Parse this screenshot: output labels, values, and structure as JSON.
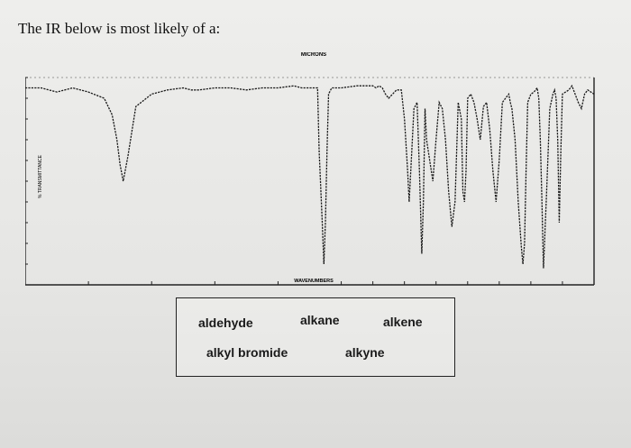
{
  "question": "The IR below is most likely of a:",
  "choices": [
    "aldehyde",
    "alkane",
    "alkene",
    "alkyl bromide",
    "alkyne"
  ],
  "chart_data": {
    "type": "line",
    "title": "",
    "xlabel": "WAVENUMBERS",
    "top_axis_label": "MICRONS",
    "ylabel": "% TRANSMITTANCE",
    "xlim": [
      4000,
      400
    ],
    "ylim": [
      0,
      100
    ],
    "x_ticks": [
      4000,
      3600,
      3200,
      2800,
      2400,
      2000,
      1800,
      1600,
      1400,
      1200,
      1000,
      800,
      600,
      400
    ],
    "y_ticks": [
      10,
      20,
      30,
      40,
      50,
      60,
      70,
      80,
      90,
      100
    ],
    "series": [
      {
        "x": [
          4000,
          3900,
          3800,
          3700,
          3600,
          3500,
          3450,
          3420,
          3400,
          3380,
          3350,
          3300,
          3200,
          3100,
          3000,
          2950,
          2900,
          2800,
          2700,
          2600,
          2500,
          2400,
          2300,
          2250,
          2150,
          2140,
          2120,
          2110,
          2100,
          2090,
          2080,
          2060,
          2000,
          1900,
          1800,
          1780,
          1760,
          1740,
          1720,
          1700,
          1650,
          1620,
          1600,
          1580,
          1570,
          1560,
          1540,
          1520,
          1505,
          1490,
          1480,
          1470,
          1460,
          1440,
          1420,
          1400,
          1380,
          1360,
          1340,
          1320,
          1300,
          1280,
          1260,
          1240,
          1230,
          1220,
          1210,
          1200,
          1180,
          1160,
          1140,
          1120,
          1100,
          1080,
          1060,
          1040,
          1020,
          1000,
          980,
          960,
          940,
          930,
          920,
          900,
          880,
          860,
          850,
          840,
          830,
          820,
          800,
          780,
          760,
          750,
          740,
          730,
          720,
          700,
          680,
          660,
          650,
          640,
          630,
          620,
          610,
          600,
          580,
          560,
          540,
          520,
          500,
          480,
          460,
          440,
          420,
          400
        ],
        "y": [
          95,
          95,
          93,
          95,
          93,
          90,
          82,
          70,
          58,
          50,
          62,
          86,
          92,
          94,
          95,
          94,
          94,
          95,
          95,
          94,
          95,
          95,
          96,
          95,
          95,
          65,
          30,
          10,
          30,
          65,
          92,
          95,
          95,
          96,
          96,
          95,
          96,
          95,
          92,
          90,
          94,
          94,
          80,
          55,
          40,
          55,
          85,
          88,
          55,
          15,
          40,
          85,
          70,
          60,
          50,
          70,
          88,
          85,
          70,
          45,
          28,
          40,
          88,
          80,
          45,
          40,
          55,
          90,
          92,
          88,
          80,
          70,
          86,
          88,
          75,
          55,
          40,
          60,
          88,
          90,
          92,
          88,
          85,
          70,
          40,
          18,
          10,
          20,
          55,
          88,
          92,
          93,
          95,
          90,
          70,
          40,
          8,
          45,
          85,
          92,
          94,
          90,
          70,
          30,
          65,
          92,
          93,
          94,
          96,
          92,
          88,
          85,
          92,
          94,
          93,
          92
        ]
      }
    ]
  }
}
